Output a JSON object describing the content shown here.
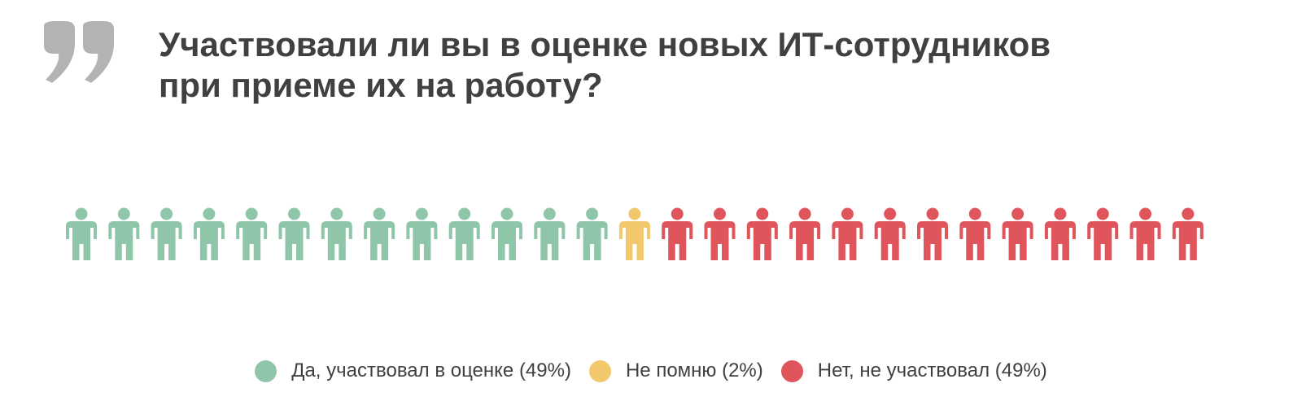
{
  "colors": {
    "yes": "#8fc6a9",
    "dont_remember": "#f1c86b",
    "no": "#e0545b",
    "text": "#404040",
    "quote": "#b3b3b3"
  },
  "title": {
    "line1": "Участвовали ли вы в оценке новых ИТ-сотрудников",
    "line2": "при приеме их на работу?"
  },
  "chart_data": {
    "type": "pictogram",
    "title": "Участвовали ли вы в оценке новых ИТ-сотрудников при приеме их на работу?",
    "total_icons": 27,
    "series": [
      {
        "name": "Да, участвовал в оценке (49%)",
        "percent": 49,
        "icons": 13,
        "color": "#8fc6a9"
      },
      {
        "name": "Не помню (2%)",
        "percent": 2,
        "icons": 1,
        "color": "#f1c86b"
      },
      {
        "name": "Нет, не участвовал (49%)",
        "percent": 49,
        "icons": 13,
        "color": "#e0545b"
      }
    ],
    "legend_position": "bottom"
  },
  "legend": [
    {
      "label": "Да, участвовал в оценке (49%)",
      "color": "#8fc6a9"
    },
    {
      "label": "Не помню (2%)",
      "color": "#f1c86b"
    },
    {
      "label": "Нет, не участвовал (49%)",
      "color": "#e0545b"
    }
  ]
}
